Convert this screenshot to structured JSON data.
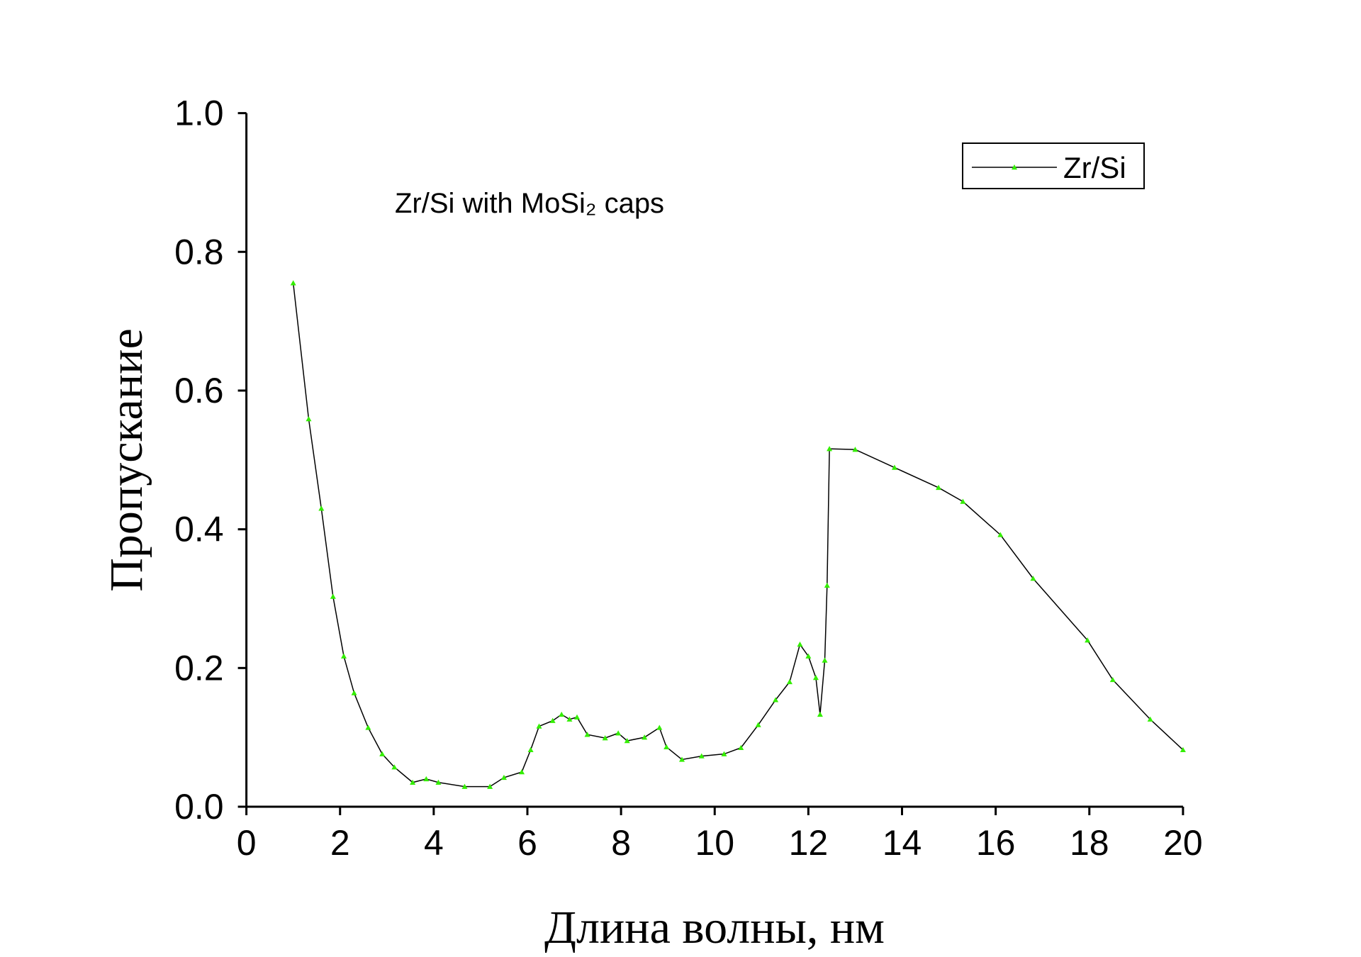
{
  "chart_data": {
    "type": "line",
    "annotation": "Zr/Si with MoSi₂ caps",
    "x_label": "Длина волны, нм",
    "y_label": "Пропускание",
    "xlim": [
      0,
      20
    ],
    "ylim": [
      0,
      1.0
    ],
    "xticks": [
      0,
      2,
      4,
      6,
      8,
      10,
      12,
      14,
      16,
      18,
      20
    ],
    "yticks": [
      {
        "value": 0,
        "label": "0.0"
      },
      0.2,
      0.4,
      0.6,
      0.8,
      {
        "value": 1,
        "label": "1.0"
      }
    ],
    "legend": "top-right",
    "x": [
      1.0,
      1.33,
      1.6,
      1.85,
      2.08,
      2.3,
      2.6,
      2.9,
      3.16,
      3.55,
      3.84,
      4.1,
      4.66,
      5.2,
      5.5,
      5.88,
      6.07,
      6.25,
      6.54,
      6.73,
      6.9,
      7.06,
      7.28,
      7.66,
      7.94,
      8.13,
      8.5,
      8.82,
      8.97,
      9.3,
      9.72,
      10.2,
      10.56,
      10.93,
      11.3,
      11.6,
      11.82,
      12.0,
      12.16,
      12.25,
      12.35,
      12.4,
      12.45,
      13.0,
      13.84,
      14.78,
      15.3,
      16.1,
      16.8,
      17.96,
      18.5,
      19.3,
      20.0
    ],
    "series": [
      {
        "name": "Zr/Si",
        "color": "#33ee00",
        "line_color": "#000000",
        "values": [
          0.755,
          0.559,
          0.43,
          0.303,
          0.217,
          0.164,
          0.114,
          0.076,
          0.057,
          0.035,
          0.04,
          0.035,
          0.029,
          0.029,
          0.042,
          0.05,
          0.082,
          0.116,
          0.124,
          0.133,
          0.126,
          0.129,
          0.104,
          0.099,
          0.106,
          0.095,
          0.1,
          0.114,
          0.086,
          0.068,
          0.073,
          0.076,
          0.085,
          0.118,
          0.154,
          0.18,
          0.234,
          0.217,
          0.186,
          0.133,
          0.211,
          0.319,
          0.516,
          0.515,
          0.489,
          0.46,
          0.44,
          0.392,
          0.329,
          0.24,
          0.183,
          0.126,
          0.082
        ]
      }
    ]
  }
}
